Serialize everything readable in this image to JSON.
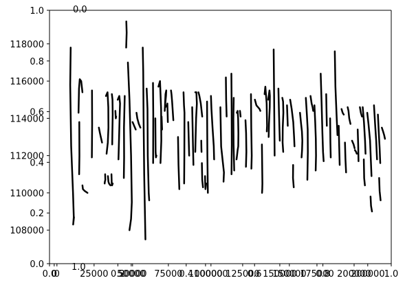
{
  "chart_data": {
    "type": "line",
    "title": "",
    "xlabel": "",
    "ylabel": "",
    "overlay_axes": {
      "x_ticks": [
        "0.0",
        "0.2",
        "0.4",
        "0.6",
        "0.8",
        "1.0"
      ],
      "y_ticks": [
        "0.0",
        "0.2",
        "0.4",
        "0.6",
        "0.8",
        "1.0"
      ],
      "stray_labels": [
        "0.0",
        "1.0"
      ]
    },
    "main_axes": {
      "x_ticks": [
        "0",
        "50000",
        "100000",
        "150000",
        "200000"
      ],
      "y_ticks": [
        "108000",
        "110000",
        "112000",
        "114000",
        "116000",
        "118000"
      ],
      "xlim": [
        -3000,
        215000
      ],
      "ylim": [
        106200,
        119800
      ]
    },
    "minor_axes": {
      "x_ticks": [
        "0",
        "25000",
        "50000",
        "75000",
        "100000",
        "125000",
        "150000",
        "175000",
        "200000"
      ],
      "xlim": [
        -5000,
        225000
      ]
    },
    "series": [
      {
        "x": [
          10500,
          10200,
          10800,
          12000,
          12500,
          12100,
          12600
        ],
        "y": [
          117800,
          115800,
          112500,
          110000,
          108700,
          108300,
          108700
        ]
      },
      {
        "x": [
          15500,
          15800,
          16300,
          17200,
          18000
        ],
        "y": [
          114300,
          115600,
          116100,
          116000,
          115400
        ]
      },
      {
        "x": [
          16000,
          16100,
          15900
        ],
        "y": [
          113800,
          112000,
          111000
        ]
      },
      {
        "x": [
          18000,
          18300,
          19500,
          21200
        ],
        "y": [
          110400,
          110200,
          110100,
          110000
        ]
      },
      {
        "x": [
          24100,
          24200,
          24000
        ],
        "y": [
          115500,
          113700,
          111900
        ]
      },
      {
        "x": [
          28500,
          29200,
          30500
        ],
        "y": [
          113500,
          113200,
          112700
        ]
      },
      {
        "x": [
          32500,
          32600,
          32300,
          32200
        ],
        "y": [
          111000,
          110700,
          110600,
          110500
        ]
      },
      {
        "x": [
          33000,
          34000,
          34500,
          34600,
          34200,
          33400
        ],
        "y": [
          115200,
          115400,
          114600,
          113500,
          112700,
          112100
        ]
      },
      {
        "x": [
          34300,
          34600,
          35000,
          35400,
          35900
        ],
        "y": [
          110900,
          110600,
          110500,
          110450,
          110400
        ]
      },
      {
        "x": [
          36800,
          37200,
          37300,
          37100,
          37000
        ],
        "y": [
          115300,
          115000,
          114200,
          113200,
          112600
        ]
      },
      {
        "x": [
          36500,
          36700,
          36900,
          37300
        ],
        "y": [
          111000,
          110500,
          110400,
          110500
        ]
      },
      {
        "x": [
          39000,
          39300,
          39500
        ],
        "y": [
          114400,
          114000,
          114100
        ]
      },
      {
        "x": [
          40500,
          41500,
          42000,
          41700,
          41400,
          41000
        ],
        "y": [
          115000,
          115200,
          114800,
          114000,
          113000,
          111800
        ]
      },
      {
        "x": [
          45000,
          44500,
          44600,
          44400
        ],
        "y": [
          115200,
          113500,
          111900,
          110800
        ]
      },
      {
        "x": [
          46000,
          46200,
          45900
        ],
        "y": [
          119200,
          118600,
          117800
        ]
      },
      {
        "x": [
          47000,
          48000,
          49000,
          49500,
          49000,
          48000
        ],
        "y": [
          117000,
          115000,
          112000,
          109500,
          108600,
          108000
        ]
      },
      {
        "x": [
          50000,
          51000,
          52000
        ],
        "y": [
          113800,
          113600,
          113400
        ]
      },
      {
        "x": [
          52500,
          53000,
          54000,
          55000
        ],
        "y": [
          114300,
          114000,
          113700,
          113500
        ]
      },
      {
        "x": [
          56500,
          56800,
          57000,
          57400,
          58200
        ],
        "y": [
          117800,
          116500,
          114000,
          111000,
          107500
        ]
      },
      {
        "x": [
          59000,
          59500,
          59700,
          60300,
          60500,
          60600
        ],
        "y": [
          115600,
          114500,
          112000,
          110000,
          109700,
          109600
        ]
      },
      {
        "x": [
          63000,
          63200,
          63100
        ],
        "y": [
          115900,
          114200,
          111600
        ]
      },
      {
        "x": [
          64500,
          64700,
          64900,
          65200
        ],
        "y": [
          114000,
          112200,
          111900,
          112000
        ]
      },
      {
        "x": [
          66500,
          67500,
          68200,
          68300,
          67800
        ],
        "y": [
          115700,
          116000,
          114500,
          112800,
          111600
        ]
      },
      {
        "x": [
          68500,
          68800
        ],
        "y": [
          114100,
          113400
        ]
      },
      {
        "x": [
          70500,
          71000,
          71500,
          71300,
          70800,
          70900,
          71800
        ],
        "y": [
          114400,
          115300,
          115500,
          115200,
          114800,
          114600,
          114700
        ]
      },
      {
        "x": [
          72200,
          72500
        ],
        "y": [
          114800,
          113800
        ]
      },
      {
        "x": [
          74500,
          74800,
          75200,
          75600,
          76000
        ],
        "y": [
          115500,
          115300,
          114900,
          114400,
          113900
        ]
      },
      {
        "x": [
          79000,
          79300,
          79800
        ],
        "y": [
          113000,
          111500,
          110200
        ]
      },
      {
        "x": [
          82500,
          82800,
          83100,
          83000,
          82900
        ],
        "y": [
          115400,
          114700,
          114300,
          112000,
          110500
        ]
      },
      {
        "x": [
          85500,
          86100
        ],
        "y": [
          113800,
          112000
        ]
      },
      {
        "x": [
          88000,
          88400,
          88800
        ],
        "y": [
          114600,
          113000,
          111500
        ]
      },
      {
        "x": [
          90000,
          90700,
          91000,
          90500,
          90200,
          90000
        ],
        "y": [
          115400,
          115400,
          114800,
          114000,
          113000,
          112200
        ]
      },
      {
        "x": [
          92000,
          92600,
          93500,
          94400
        ],
        "y": [
          115400,
          115200,
          114800,
          114100
        ]
      },
      {
        "x": [
          93800,
          93900,
          94000
        ],
        "y": [
          112800,
          112400,
          112200
        ]
      },
      {
        "x": [
          94200,
          94400,
          94900
        ],
        "y": [
          111600,
          110700,
          110300
        ]
      },
      {
        "x": [
          96200,
          96300,
          96500,
          96900
        ],
        "y": [
          110900,
          110500,
          110200,
          110500
        ]
      },
      {
        "x": [
          97500,
          97700,
          98000
        ],
        "y": [
          114900,
          112000,
          110000
        ]
      },
      {
        "x": [
          100000,
          100300,
          101000,
          101800,
          102000
        ],
        "y": [
          115200,
          114500,
          113500,
          112500,
          111800
        ]
      },
      {
        "x": [
          106000,
          106500,
          107500,
          108300,
          108000
        ],
        "y": [
          114600,
          112500,
          111700,
          111100,
          110600
        ]
      },
      {
        "x": [
          109500,
          109700,
          110000
        ],
        "y": [
          116200,
          115000,
          114100
        ]
      },
      {
        "x": [
          113000,
          113200,
          113300,
          113100
        ],
        "y": [
          116400,
          114500,
          112600,
          111000
        ]
      },
      {
        "x": [
          114500,
          114300,
          114400,
          114800
        ],
        "y": [
          115100,
          114000,
          112600,
          111200
        ]
      },
      {
        "x": [
          116500,
          117000,
          117300,
          117500,
          117400,
          117000,
          116600,
          116300
        ],
        "y": [
          114300,
          114400,
          114000,
          113200,
          112500,
          112300,
          112000,
          111800
        ]
      },
      {
        "x": [
          118500,
          118900
        ],
        "y": [
          114400,
          114100
        ]
      },
      {
        "x": [
          122000,
          122400,
          122600,
          122300
        ],
        "y": [
          113900,
          113200,
          112200,
          111400
        ]
      },
      {
        "x": [
          125500,
          125700,
          126000,
          125800
        ],
        "y": [
          115300,
          113500,
          112000,
          111300
        ]
      },
      {
        "x": [
          128000,
          129000,
          130000,
          131000,
          131500
        ],
        "y": [
          115000,
          114700,
          114600,
          114500,
          114400
        ]
      },
      {
        "x": [
          132500,
          132800,
          132700,
          132600
        ],
        "y": [
          112600,
          110500,
          110200,
          110000
        ]
      },
      {
        "x": [
          134200,
          134700,
          135500,
          135800,
          135600
        ],
        "y": [
          115300,
          115700,
          114800,
          113600,
          113300
        ]
      },
      {
        "x": [
          136500,
          137300,
          137600,
          137500,
          137000,
          136800
        ],
        "y": [
          115000,
          115500,
          115200,
          114600,
          113700,
          113000
        ]
      },
      {
        "x": [
          140000,
          140300,
          140600
        ],
        "y": [
          117700,
          115000,
          112000
        ]
      },
      {
        "x": [
          143000,
          143400,
          143900
        ],
        "y": [
          115600,
          114200,
          112800
        ]
      },
      {
        "x": [
          145500,
          146000,
          146200,
          145800,
          145700,
          146100
        ],
        "y": [
          115100,
          114900,
          114300,
          113500,
          112700,
          112200
        ]
      },
      {
        "x": [
          148500,
          149000
        ],
        "y": [
          114700,
          113600
        ]
      },
      {
        "x": [
          150500,
          151500,
          152500,
          153000,
          153300
        ],
        "y": [
          115000,
          114500,
          113800,
          113000,
          112500
        ]
      },
      {
        "x": [
          152400,
          152300,
          152800
        ],
        "y": [
          111500,
          110800,
          110300
        ]
      },
      {
        "x": [
          156800,
          157500,
          158000,
          158300,
          158100,
          157800
        ],
        "y": [
          114300,
          113700,
          113300,
          112800,
          112300,
          111900
        ]
      },
      {
        "x": [
          160500,
          161200,
          161700,
          161800,
          161500
        ],
        "y": [
          115100,
          114200,
          113400,
          112200,
          110700
        ]
      },
      {
        "x": [
          163500,
          164200,
          164800,
          165200
        ],
        "y": [
          115200,
          114800,
          114600,
          114400
        ]
      },
      {
        "x": [
          166000,
          166500,
          166900,
          167000,
          166800
        ],
        "y": [
          114700,
          113800,
          112900,
          112000,
          111200
        ]
      },
      {
        "x": [
          170000,
          170600,
          171100,
          171500,
          171900
        ],
        "y": [
          116400,
          114700,
          113200,
          112200,
          111700
        ]
      },
      {
        "x": [
          173500,
          173700,
          173900
        ],
        "y": [
          115300,
          114500,
          113600
        ]
      },
      {
        "x": [
          176000,
          176200,
          176400
        ],
        "y": [
          114000,
          112700,
          111900
        ]
      },
      {
        "x": [
          179000,
          179400,
          180200,
          180700
        ],
        "y": [
          117600,
          115700,
          114000,
          113100
        ]
      },
      {
        "x": [
          181500,
          181800,
          182100
        ],
        "y": [
          113600,
          112500,
          111500
        ]
      },
      {
        "x": [
          183300,
          184000,
          184700
        ],
        "y": [
          114500,
          114300,
          114200
        ]
      },
      {
        "x": [
          185500,
          185800,
          186200
        ],
        "y": [
          112700,
          111800,
          111100
        ]
      },
      {
        "x": [
          187200,
          187700,
          188200,
          189000
        ],
        "y": [
          114600,
          114400,
          114000,
          113700
        ]
      },
      {
        "x": [
          190000,
          190500,
          191000,
          191600
        ],
        "y": [
          112800,
          112700,
          112600,
          112400
        ]
      },
      {
        "x": [
          191800,
          192600,
          193000
        ],
        "y": [
          112300,
          112200,
          112100
        ]
      },
      {
        "x": [
          193600,
          193900,
          194100
        ],
        "y": [
          113400,
          112600,
          111700
        ]
      },
      {
        "x": [
          195000,
          195600,
          196300
        ],
        "y": [
          114600,
          114300,
          114100
        ]
      },
      {
        "x": [
          196800,
          197600,
          198300,
          198600
        ],
        "y": [
          114600,
          113800,
          112800,
          112100
        ]
      },
      {
        "x": [
          197500,
          197700,
          198200
        ],
        "y": [
          111800,
          110800,
          110400
        ]
      },
      {
        "x": [
          199700,
          200500,
          201500,
          202000,
          202400
        ],
        "y": [
          114300,
          113700,
          112800,
          111700,
          110900
        ]
      },
      {
        "x": [
          201800,
          202100,
          202700
        ],
        "y": [
          109800,
          109300,
          109000
        ]
      },
      {
        "x": [
          204000,
          204700,
          205400,
          205900
        ],
        "y": [
          114700,
          113700,
          112800,
          111800
        ]
      },
      {
        "x": [
          206500,
          207000,
          207600,
          208000
        ],
        "y": [
          114200,
          113300,
          112400,
          111600
        ]
      },
      {
        "x": [
          207300,
          207600,
          208200
        ],
        "y": [
          110800,
          110100,
          109600
        ]
      },
      {
        "x": [
          209000,
          209800,
          210500,
          211000
        ],
        "y": [
          113500,
          113300,
          113100,
          112900
        ]
      }
    ]
  }
}
